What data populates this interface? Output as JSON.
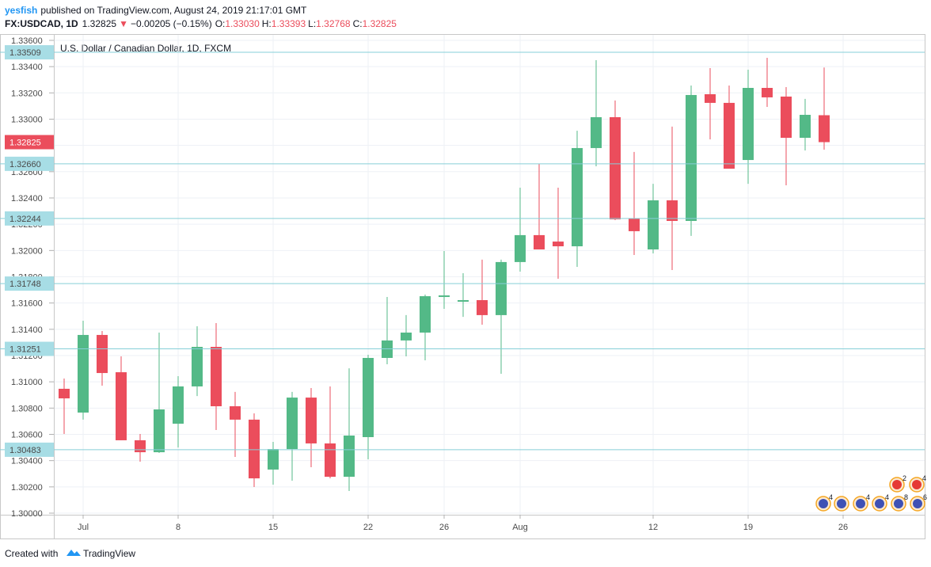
{
  "header": {
    "author": "yesfish",
    "published": "published on TradingView.com, August 24, 2019 21:17:01 GMT",
    "symbol": "FX:USDCAD, 1D",
    "last": "1.32825",
    "arrow": "▼",
    "change": "−0.00205 (−0.15%)",
    "o_label": "O:",
    "o": "1.33030",
    "h_label": "H:",
    "h": "1.33393",
    "l_label": "L:",
    "l": "1.32768",
    "c_label": "C:",
    "c": "1.32825"
  },
  "footer": {
    "prefix": "Created with",
    "brand": "TradingView"
  },
  "chart_data": {
    "type": "candlestick",
    "title": "U.S. Dollar / Canadian Dollar, 1D, FXCM",
    "up_color": "#53b987",
    "down_color": "#eb4d5c",
    "grid": true,
    "categories": [
      null,
      "Jul",
      null,
      null,
      null,
      null,
      "8",
      null,
      null,
      null,
      null,
      "15",
      null,
      null,
      null,
      null,
      "22",
      null,
      null,
      null,
      "26",
      null,
      null,
      null,
      "Aug",
      null,
      null,
      null,
      null,
      null,
      null,
      "12",
      null,
      null,
      null,
      null,
      "19",
      null,
      null,
      null,
      null,
      "26"
    ],
    "open": [
      1.30947,
      1.30766,
      1.31357,
      1.31073,
      1.30555,
      1.30464,
      1.30681,
      1.30965,
      1.31266,
      1.30814,
      1.30712,
      1.30332,
      1.30488,
      1.3088,
      1.30531,
      1.30277,
      1.30579,
      1.31182,
      1.31315,
      1.31375,
      1.31646,
      1.3161,
      1.31622,
      1.31508,
      1.31912,
      1.32117,
      1.32068,
      1.32032,
      1.3278,
      1.33015,
      1.32243,
      1.32008,
      1.32382,
      1.32225,
      1.3319,
      1.33124,
      1.32689,
      1.33238,
      1.33172,
      1.32858,
      1.3303,
      null
    ],
    "high": [
      1.31025,
      1.31465,
      1.31387,
      1.31194,
      1.30603,
      1.31375,
      1.31043,
      1.31423,
      1.31447,
      1.30923,
      1.3076,
      1.30543,
      1.30923,
      1.30953,
      1.30965,
      1.31103,
      1.31206,
      1.31646,
      1.31508,
      1.31664,
      1.31996,
      1.31827,
      1.3193,
      1.3193,
      1.32478,
      1.32659,
      1.32478,
      1.32912,
      1.33449,
      1.33142,
      1.3275,
      1.32508,
      1.32943,
      1.33256,
      1.33389,
      1.33256,
      1.33377,
      1.33467,
      1.33244,
      1.33154,
      1.33393,
      null
    ],
    "low": [
      1.30603,
      1.30712,
      1.30971,
      1.30555,
      1.30392,
      1.30458,
      1.305,
      1.30892,
      1.30633,
      1.30428,
      1.30199,
      1.30217,
      1.30247,
      1.3035,
      1.30265,
      1.30169,
      1.3041,
      1.31134,
      1.31194,
      1.31164,
      1.31556,
      1.31495,
      1.31435,
      1.31061,
      1.31839,
      1.32008,
      1.31785,
      1.31875,
      1.32641,
      1.32231,
      1.31966,
      1.31978,
      1.31851,
      1.32111,
      1.32846,
      1.32623,
      1.32508,
      1.33093,
      1.32496,
      1.32762,
      1.32768,
      null
    ],
    "close": [
      1.30874,
      1.31357,
      1.31067,
      1.30555,
      1.30464,
      1.3079,
      1.30965,
      1.31266,
      1.30814,
      1.30712,
      1.30265,
      1.30488,
      1.3088,
      1.30531,
      1.30277,
      1.30591,
      1.31182,
      1.31315,
      1.31375,
      1.31652,
      1.31658,
      1.31622,
      1.31508,
      1.31912,
      1.32117,
      1.32008,
      1.32032,
      1.3278,
      1.33015,
      1.32237,
      1.32147,
      1.32382,
      1.32225,
      1.33184,
      1.33124,
      1.32623,
      1.33238,
      1.33166,
      1.32858,
      1.33033,
      1.32825,
      null
    ],
    "ylim": [
      1.29988,
      1.33642
    ],
    "yticks": [
      {
        "value": 1.3,
        "label": "1.30000"
      },
      {
        "value": 1.302,
        "label": "1.30200"
      },
      {
        "value": 1.304,
        "label": "1.30400"
      },
      {
        "value": 1.306,
        "label": "1.30600"
      },
      {
        "value": 1.308,
        "label": "1.30800"
      },
      {
        "value": 1.31,
        "label": "1.31000"
      },
      {
        "value": 1.312,
        "label": "1.31200"
      },
      {
        "value": 1.314,
        "label": "1.31400"
      },
      {
        "value": 1.316,
        "label": "1.31600"
      },
      {
        "value": 1.318,
        "label": "1.31800"
      },
      {
        "value": 1.32,
        "label": "1.32000"
      },
      {
        "value": 1.322,
        "label": "1.32200"
      },
      {
        "value": 1.324,
        "label": "1.32400"
      },
      {
        "value": 1.326,
        "label": "1.32600"
      },
      {
        "value": 1.328,
        "label": "1.32800"
      },
      {
        "value": 1.33,
        "label": "1.33000"
      },
      {
        "value": 1.332,
        "label": "1.33200"
      },
      {
        "value": 1.334,
        "label": "1.33400"
      },
      {
        "value": 1.336,
        "label": "1.33600"
      }
    ],
    "levels": [
      {
        "value": 1.33509,
        "label": "1.33509"
      },
      {
        "value": 1.3266,
        "label": "1.32660"
      },
      {
        "value": 1.32244,
        "label": "1.32244"
      },
      {
        "value": 1.31748,
        "label": "1.31748"
      },
      {
        "value": 1.31251,
        "label": "1.31251"
      },
      {
        "value": 1.30483,
        "label": "1.30483"
      }
    ],
    "last_price": {
      "value": 1.32825,
      "label": "1.32825"
    },
    "events": [
      "2",
      "4",
      "4",
      "4",
      "4",
      "8",
      "6"
    ]
  }
}
